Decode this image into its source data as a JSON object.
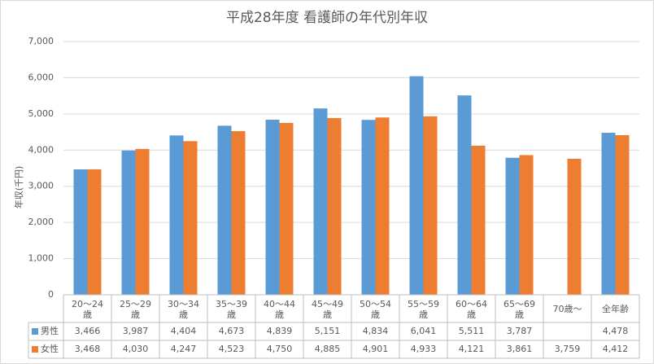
{
  "chart_data": {
    "type": "bar",
    "title": "平成28年度  看護師の年代別年収",
    "y_label": "年収(千円)",
    "categories": [
      "20〜24歳",
      "25〜29歳",
      "30〜34歳",
      "35〜39歳",
      "40〜44歳",
      "45〜49歳",
      "50〜54歳",
      "55〜59歳",
      "60〜64歳",
      "65〜69歳",
      "70歳〜",
      "全年齢"
    ],
    "series": [
      {
        "name": "男性",
        "color": "#5b9bd5",
        "values": [
          3466,
          3987,
          4404,
          4673,
          4839,
          5151,
          4834,
          6041,
          5511,
          3787,
          null,
          4478
        ],
        "value_labels": [
          "3,466",
          "3,987",
          "4,404",
          "4,673",
          "4,839",
          "5,151",
          "4,834",
          "6,041",
          "5,511",
          "3,787",
          null,
          "4,478"
        ]
      },
      {
        "name": "女性",
        "color": "#ed7d31",
        "values": [
          3468,
          4030,
          4247,
          4523,
          4750,
          4885,
          4901,
          4933,
          4121,
          3861,
          3759,
          4412
        ],
        "value_labels": [
          "3,468",
          "4,030",
          "4,247",
          "4,523",
          "4,750",
          "4,885",
          "4,901",
          "4,933",
          "4,121",
          "3,861",
          "3,759",
          "4,412"
        ]
      }
    ],
    "ylim": [
      0,
      7000
    ],
    "yticks": [
      0,
      {
        "value": 1000,
        "label": "1,000"
      },
      {
        "value": 2000,
        "label": "2,000"
      },
      {
        "value": 3000,
        "label": "3,000"
      },
      {
        "value": 4000,
        "label": "4,000"
      },
      {
        "value": 5000,
        "label": "5,000"
      },
      {
        "value": 6000,
        "label": "6,000"
      },
      {
        "value": 7000,
        "label": "7,000"
      }
    ],
    "grid": true
  }
}
